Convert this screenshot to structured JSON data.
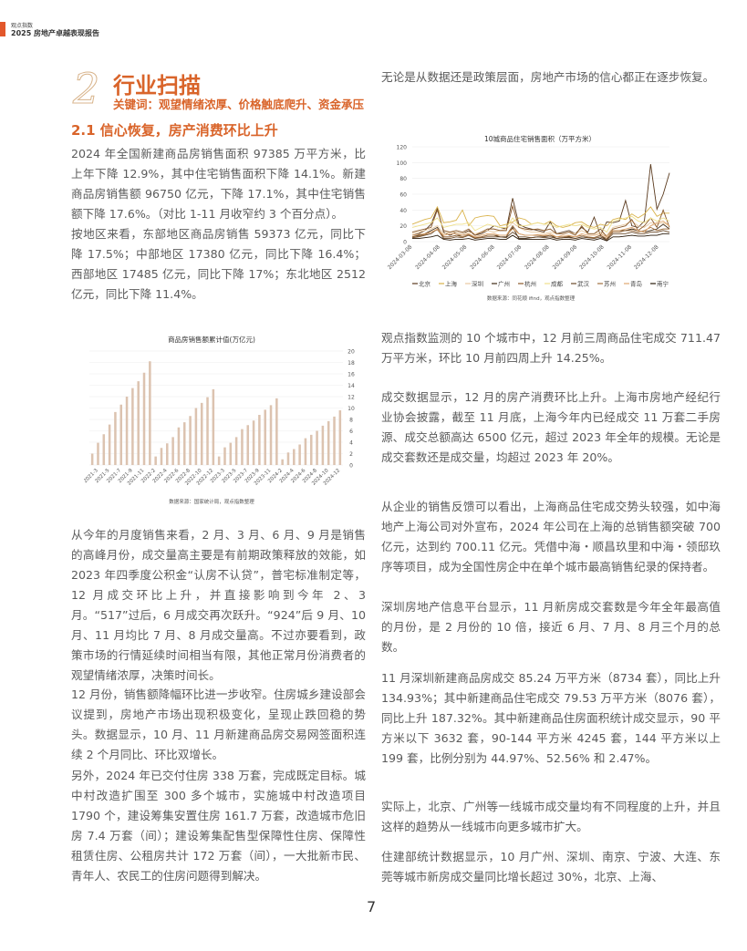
{
  "header": {
    "brand": "观点指数",
    "report_title": "2025 房地产卓越表现报告"
  },
  "section": {
    "number": "2",
    "title": "行业扫描",
    "keywords": "关键词：观望情绪浓厚、价格触底爬升、资金承压"
  },
  "subsection": {
    "title": "2.1 信心恢复，房产消费环比上升"
  },
  "left_paragraphs": [
    "2024 年全国新建商品房销售面积 97385 万平方米，比上年下降 12.9%，其中住宅销售面积下降 14.1%。新建商品房销售额 96750 亿元，下降 17.1%，其中住宅销售额下降 17.6%。（对比 1-11 月收窄约 3 个百分点）。",
    "按地区来看，东部地区商品房销售 59373 亿元，同比下降 17.5%；中部地区 17380 亿元，同比下降 16.4%；西部地区 17485 亿元，同比下降 17%；东北地区 2512 亿元，同比下降 11.4%。",
    "从今年的月度销售来看，2 月、3 月、6 月、9 月是销售的高峰月份，成交量高主要是有前期政策释放的效能，如 2023 年四季度公积金“认房不认贷”，普宅标准制定等，12 月成交环比上升，并直接影响到今年 2、3 月。“517”过后，6 月成交再次跃升。“924”后 9 月、10 月、11 月均比 7 月、8 月成交量高。不过亦要看到，政策市场的行情延续时间相当有限，其他正常月份消费者的观望情绪浓厚，决策时间长。",
    "12 月份，销售额降幅环比进一步收窄。住房城乡建设部会议提到，房地产市场出现积极变化，呈现止跌回稳的势头。数据显示，10 月、11 月新建商品房交易网签面积连续 2 个月同比、环比双增长。",
    "另外，2024 年已交付住房 338 万套，完成既定目标。城中村改造扩围至 300 多个城市，实施城中村改造项目 1790 个，建设筹集安置住房 161.7 万套，改造城市危旧房 7.4 万套（间）；建设筹集配售型保障性住房、保障性租赁住房、公租房共计 172 万套（间），一大批新市民、青年人、农民工的住房问题得到解决。"
  ],
  "right_paragraphs": [
    "无论是从数据还是政策层面，房地产市场的信心都正在逐步恢复。",
    "观点指数监测的 10 个城市中，12 月前三周商品住宅成交 711.47 万平方米，环比 10 月前四周上升 14.25%。",
    "成交数据显示，12 月的房产消费环比上升。上海市房地产经纪行业协会披露，截至 11 月底，上海今年内已经成交 11 万套二手房源、成交总额高达 6500 亿元，超过 2023 年全年的规模。无论是成交套数还是成交量，均超过 2023 年 20%。",
    "从企业的销售反馈可以看出，上海商品住宅成交势头较强，如中海地产上海公司对外宣布，2024 年公司在上海的总销售额突破 700 亿元，达到约 700.11 亿元。凭借中海・顺昌玖里和中海・领邸玖序等项目，成为全国性房企中在单个城市最高销售纪录的保持者。",
    "深圳房地产信息平台显示，11 月新房成交套数是今年全年最高值的月份，是 2 月份的 10 倍，接近 6 月、7 月、8 月三个月的总数。",
    "11 月深圳新建商品房成交 85.24 万平方米（8734 套），同比上升 134.93%；其中新建商品住宅成交 79.53 万平方米（8076 套），同比上升 187.32%。其中新建商品住房面积统计成交显示，90 平方米以下 3632 套，90-144 平方米 4245 套，144 平方米以上 199 套，比例分别为 44.97%、52.56% 和 2.47%。",
    "实际上，北京、广州等一线城市成交量均有不同程度的上升，并且这样的趋势从一线城市向更多城市扩大。",
    "住建部统计数据显示，10 月广州、深圳、南京、宁波、大连、东莞等城市新房成交量同比增长超过 30%，北京、上海、"
  ],
  "page_number": "7",
  "chart_data": [
    {
      "type": "bar",
      "title": "商品房销售额累计值(万亿元)",
      "source": "数据来源：国家统计局，观点指数整理",
      "categories": [
        "2021-2",
        "2021-3",
        "2021-4",
        "2021-5",
        "2021-6",
        "2021-7",
        "2021-8",
        "2021-9",
        "2021-10",
        "2021-11",
        "2021-12",
        "2022-2",
        "2022-3",
        "2022-4",
        "2022-5",
        "2022-6",
        "2022-7",
        "2022-8",
        "2022-9",
        "2022-10",
        "2022-11",
        "2022-12",
        "2023-2",
        "2023-3",
        "2023-4",
        "2023-5",
        "2023-6",
        "2023-7",
        "2023-8",
        "2023-9",
        "2023-10",
        "2023-11",
        "2023-12",
        "2024-2",
        "2024-3",
        "2024-4",
        "2024-5",
        "2024-6",
        "2024-7",
        "2024-8",
        "2024-9",
        "2024-10",
        "2024-11",
        "2024-12"
      ],
      "tick_labels": [
        "2021-3",
        "2021-5",
        "2021-7",
        "2021-9",
        "2021-11",
        "2022-2",
        "2022-4",
        "2022-6",
        "2022-8",
        "2022-10",
        "2022-12",
        "2023-3",
        "2023-5",
        "2023-7",
        "2023-9",
        "2023-11",
        "2024-2",
        "2024-4",
        "2024-6",
        "2024-8",
        "2024-10",
        "2024-12"
      ],
      "values": [
        2.0,
        3.9,
        5.4,
        7.1,
        9.3,
        10.6,
        12.0,
        13.5,
        14.7,
        16.2,
        18.2,
        1.5,
        3.0,
        3.8,
        4.9,
        6.6,
        7.5,
        8.6,
        10.0,
        10.9,
        11.9,
        13.3,
        1.5,
        3.1,
        3.9,
        4.9,
        6.3,
        7.0,
        7.8,
        8.8,
        9.7,
        10.5,
        11.7,
        1.0,
        2.2,
        2.8,
        3.6,
        4.7,
        5.3,
        6.0,
        6.9,
        7.7,
        8.5,
        9.6
      ],
      "ylim": [
        0,
        20
      ],
      "yticks": [
        0,
        2,
        4,
        6,
        8,
        10,
        12,
        14,
        16,
        18,
        20
      ],
      "y_axis_position": "right",
      "grid": true,
      "color": "#dcc3b0"
    },
    {
      "type": "line",
      "title": "10城商品住宅销售面积（万平方米）",
      "source": "数据来源：同花顺 ifind，观点指数整理",
      "ylim": [
        0,
        120
      ],
      "yticks": [
        0,
        20,
        40,
        60,
        80,
        100,
        120
      ],
      "grid": true,
      "legend": "bottom",
      "x_ticks": [
        "2024-03-08",
        "2024-04-08",
        "2024-05-08",
        "2024-06-08",
        "2024-07-08",
        "2024-08-08",
        "2024-09-08",
        "2024-10-08",
        "2024-11-08",
        "2024-12-08"
      ],
      "x": [
        "2024-03-08",
        "2024-03-15",
        "2024-03-22",
        "2024-03-29",
        "2024-04-05",
        "2024-04-12",
        "2024-04-19",
        "2024-04-26",
        "2024-05-03",
        "2024-05-10",
        "2024-05-17",
        "2024-05-24",
        "2024-05-31",
        "2024-06-07",
        "2024-06-14",
        "2024-06-21",
        "2024-06-28",
        "2024-07-05",
        "2024-07-12",
        "2024-07-19",
        "2024-07-26",
        "2024-08-02",
        "2024-08-09",
        "2024-08-16",
        "2024-08-23",
        "2024-08-30",
        "2024-09-06",
        "2024-09-13",
        "2024-09-20",
        "2024-09-27",
        "2024-10-04",
        "2024-10-11",
        "2024-10-18",
        "2024-10-25",
        "2024-11-01",
        "2024-11-08",
        "2024-11-15",
        "2024-11-22",
        "2024-11-29",
        "2024-12-06",
        "2024-12-13",
        "2024-12-20"
      ],
      "series": [
        {
          "name": "北京",
          "color": "#5a3a1e",
          "values": [
            8,
            10,
            14,
            22,
            42,
            12,
            8,
            12,
            10,
            14,
            8,
            10,
            14,
            20,
            18,
            16,
            55,
            22,
            18,
            16,
            14,
            12,
            25,
            10,
            12,
            14,
            10,
            18,
            12,
            31,
            8,
            25,
            24,
            26,
            52,
            20,
            18,
            26,
            98,
            41,
            60,
            87
          ]
        },
        {
          "name": "上海",
          "color": "#d9b24a",
          "values": [
            22,
            25,
            28,
            30,
            44,
            24,
            25,
            27,
            40,
            20,
            30,
            32,
            33,
            32,
            20,
            22,
            25,
            30,
            28,
            22,
            24,
            22,
            26,
            20,
            18,
            20,
            24,
            25,
            20,
            18,
            22,
            20,
            28,
            30,
            28,
            35,
            30,
            35,
            44,
            32,
            36,
            36
          ]
        },
        {
          "name": "深圳",
          "color": "#e8c9a0",
          "values": [
            10,
            12,
            14,
            16,
            20,
            10,
            12,
            12,
            10,
            12,
            10,
            12,
            14,
            12,
            14,
            16,
            24,
            18,
            14,
            12,
            12,
            10,
            12,
            10,
            10,
            12,
            10,
            14,
            10,
            10,
            12,
            8,
            18,
            20,
            22,
            26,
            20,
            18,
            24,
            22,
            24,
            20
          ]
        },
        {
          "name": "广州",
          "color": "#3e2a14",
          "values": [
            6,
            8,
            10,
            14,
            18,
            6,
            6,
            8,
            8,
            10,
            4,
            6,
            8,
            8,
            6,
            6,
            18,
            4,
            4,
            5,
            6,
            6,
            8,
            4,
            5,
            6,
            4,
            6,
            5,
            5,
            8,
            2,
            14,
            14,
            14,
            16,
            14,
            12,
            14,
            16,
            22,
            16
          ]
        },
        {
          "name": "杭州",
          "color": "#8b5a2b",
          "values": [
            12,
            14,
            16,
            18,
            40,
            14,
            12,
            14,
            12,
            16,
            8,
            12,
            16,
            16,
            14,
            14,
            45,
            18,
            16,
            15,
            16,
            14,
            16,
            10,
            10,
            12,
            8,
            20,
            10,
            10,
            16,
            6,
            16,
            18,
            20,
            28,
            14,
            20,
            30,
            18,
            40,
            18
          ]
        },
        {
          "name": "成都",
          "color": "#efe08a",
          "values": [
            18,
            20,
            22,
            24,
            30,
            18,
            20,
            22,
            22,
            24,
            14,
            18,
            22,
            20,
            18,
            18,
            30,
            20,
            20,
            22,
            24,
            22,
            22,
            18,
            20,
            22,
            20,
            22,
            18,
            16,
            18,
            12,
            26,
            28,
            30,
            32,
            26,
            24,
            30,
            26,
            30,
            26
          ]
        },
        {
          "name": "武汉",
          "color": "#6b4a2a",
          "values": [
            5,
            6,
            8,
            10,
            16,
            4,
            4,
            6,
            5,
            8,
            4,
            5,
            6,
            6,
            6,
            5,
            12,
            6,
            6,
            5,
            6,
            5,
            6,
            4,
            5,
            5,
            4,
            6,
            5,
            4,
            6,
            2,
            10,
            10,
            10,
            12,
            10,
            10,
            12,
            12,
            14,
            12
          ]
        },
        {
          "name": "苏州",
          "color": "#a07040",
          "values": [
            6,
            7,
            9,
            12,
            15,
            6,
            6,
            8,
            6,
            9,
            5,
            6,
            8,
            8,
            8,
            8,
            20,
            10,
            8,
            8,
            8,
            7,
            8,
            6,
            6,
            7,
            6,
            8,
            6,
            5,
            8,
            4,
            12,
            12,
            14,
            14,
            12,
            14,
            18,
            14,
            16,
            16
          ]
        },
        {
          "name": "青岛",
          "color": "#e0a870",
          "values": [
            8,
            9,
            10,
            12,
            16,
            8,
            10,
            10,
            8,
            10,
            6,
            8,
            10,
            10,
            8,
            8,
            16,
            10,
            8,
            8,
            9,
            8,
            10,
            6,
            8,
            8,
            6,
            10,
            8,
            8,
            10,
            6,
            14,
            14,
            16,
            18,
            14,
            12,
            20,
            24,
            26,
            20
          ]
        },
        {
          "name": "南宁",
          "color": "#2a1a0a",
          "values": [
            4,
            4,
            5,
            6,
            8,
            3,
            2,
            3,
            3,
            4,
            2,
            3,
            4,
            4,
            3,
            3,
            8,
            3,
            3,
            3,
            3,
            3,
            4,
            2,
            3,
            3,
            2,
            4,
            3,
            2,
            4,
            1,
            6,
            6,
            7,
            8,
            7,
            7,
            8,
            8,
            10,
            10
          ]
        }
      ]
    }
  ],
  "colors": {
    "accent": "#d9642a",
    "header_bar": "#e2572b"
  }
}
